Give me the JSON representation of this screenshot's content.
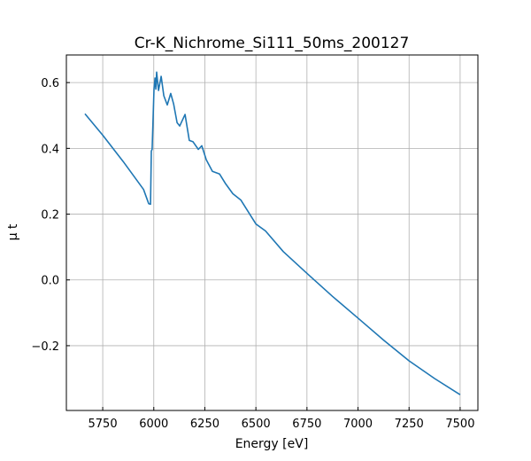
{
  "chart_data": {
    "type": "line",
    "title": "Cr-K_Nichrome_Si111_50ms_200127",
    "xlabel": "Energy [eV]",
    "ylabel": "μ t",
    "xlim": [
      5572,
      7587
    ],
    "ylim": [
      -0.397,
      0.684
    ],
    "xticks": [
      5750,
      6000,
      6250,
      6500,
      6750,
      7000,
      7250,
      7500
    ],
    "xtick_labels": [
      "5750",
      "6000",
      "6250",
      "6500",
      "6750",
      "7000",
      "7250",
      "7500"
    ],
    "yticks": [
      -0.2,
      0.0,
      0.2,
      0.4,
      0.6
    ],
    "ytick_labels": [
      "−0.2",
      "0.0",
      "0.2",
      "0.4",
      "0.6"
    ],
    "grid": true,
    "line_color": "#1f77b4",
    "series": [
      {
        "name": "mu_t",
        "x": [
          5663,
          5750,
          5850,
          5950,
          5975,
          5984,
          5988,
          5992,
          6001,
          6006,
          6010,
          6014,
          6023,
          6036,
          6049,
          6066,
          6083,
          6097,
          6114,
          6127,
          6153,
          6174,
          6192,
          6218,
          6235,
          6257,
          6287,
          6322,
          6352,
          6387,
          6426,
          6500,
          6547,
          6634,
          6750,
          6875,
          7000,
          7125,
          7250,
          7375,
          7500
        ],
        "y": [
          0.505,
          0.44,
          0.36,
          0.275,
          0.232,
          0.23,
          0.392,
          0.397,
          0.58,
          0.614,
          0.58,
          0.632,
          0.576,
          0.619,
          0.56,
          0.532,
          0.567,
          0.535,
          0.478,
          0.468,
          0.503,
          0.424,
          0.42,
          0.397,
          0.408,
          0.365,
          0.33,
          0.322,
          0.292,
          0.262,
          0.243,
          0.17,
          0.149,
          0.086,
          0.02,
          -0.05,
          -0.116,
          -0.183,
          -0.246,
          -0.3,
          -0.349
        ]
      }
    ]
  }
}
